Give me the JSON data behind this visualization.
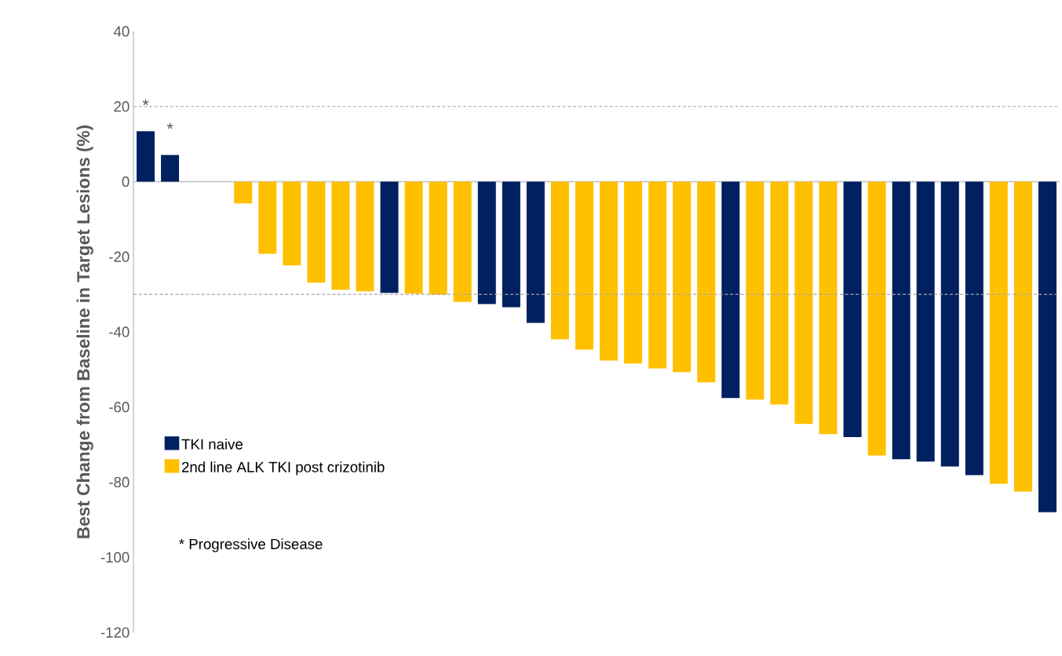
{
  "chart_data": {
    "type": "bar",
    "ylabel": "Best Change from Baseline in Target Lesions (%)",
    "categories": [
      null,
      null,
      null,
      null,
      null,
      null,
      null,
      null,
      null,
      null,
      null,
      null,
      null,
      null,
      null,
      null,
      null,
      null,
      null,
      null,
      null,
      null,
      null,
      null,
      null,
      null,
      null,
      null,
      null,
      null,
      null,
      null,
      null,
      null,
      null,
      null,
      null,
      null
    ],
    "series": [
      {
        "name": "TKI naive",
        "color": "#002060",
        "values": [
          13.4,
          7.1,
          null,
          null,
          null,
          null,
          null,
          null,
          null,
          null,
          -29.6,
          null,
          null,
          null,
          -32.6,
          -33.4,
          -37.6,
          null,
          null,
          null,
          null,
          null,
          null,
          null,
          -57.6,
          null,
          null,
          null,
          null,
          -68,
          null,
          -73.9,
          -74.5,
          -75.8,
          -78.1,
          null,
          null,
          -88
        ],
        "value_labels": [
          "*",
          "*",
          null,
          null,
          null,
          null,
          null,
          null,
          null,
          null,
          null,
          null,
          null,
          null,
          null,
          null,
          null,
          null,
          null,
          null,
          null,
          null,
          null,
          null,
          null,
          null,
          null,
          null,
          null,
          null,
          null,
          null,
          null,
          null,
          null,
          null,
          null,
          null
        ]
      },
      {
        "name": "2nd line ALK TKI post crizotinib",
        "color": "#ffc000",
        "values": [
          null,
          null,
          0,
          0,
          -5.8,
          -19.2,
          -22.3,
          -26.9,
          -28.8,
          -29.2,
          null,
          -29.8,
          -30.1,
          -32,
          null,
          null,
          null,
          -42,
          -44.7,
          -47.6,
          -48.4,
          -49.7,
          -50.7,
          -53.4,
          null,
          -58,
          -59.3,
          -64.5,
          -67.2,
          null,
          -72.9,
          null,
          null,
          null,
          null,
          -80.4,
          -82.5,
          null
        ]
      }
    ],
    "ylim": [
      -120,
      40
    ],
    "yticks": [
      -120,
      -100,
      -80,
      -60,
      -40,
      -20,
      0,
      20,
      40
    ],
    "ref_lines": [
      {
        "axis": "y",
        "value": 20,
        "color": "#a6a6a6",
        "line_style": "dashed"
      },
      {
        "axis": "y",
        "value": -30,
        "color": "#a6a6a6",
        "line_style": "dashed"
      }
    ],
    "legend": "bottom left",
    "annotations": [
      "* Progressive Disease"
    ]
  }
}
